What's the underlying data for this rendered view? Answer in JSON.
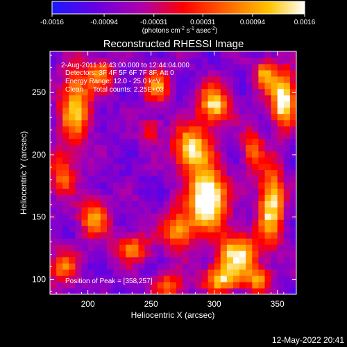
{
  "colorbar": {
    "tick_labels": [
      "-0.0016",
      "-0.00094",
      "-0.00031",
      "0.00031",
      "0.00094",
      "0.0016"
    ],
    "tick_values": [
      -0.0016,
      -0.00094,
      -0.00031,
      0.00031,
      0.00094,
      0.0016
    ],
    "range": [
      -0.0016,
      0.0016
    ],
    "units_label": "(photons cm",
    "units_exp1": "-2",
    "units_mid": " s",
    "units_exp2": "-1",
    "units_mid2": " asec",
    "units_exp3": "-2",
    "units_end": ")",
    "colors": [
      "#1a1aff",
      "#7a00d8",
      "#b8009a",
      "#ff0000",
      "#ff7a00",
      "#ffd000",
      "#ffffff"
    ]
  },
  "chart_data": {
    "type": "heatmap",
    "title": "Reconstructed RHESSI Image",
    "xlabel": "Heliocentric X (arcsec)",
    "ylabel": "Heliocentric Y (arcsec)",
    "xlim": [
      170,
      365
    ],
    "ylim": [
      88,
      283
    ],
    "x_ticks": [
      200,
      250,
      300,
      350
    ],
    "y_ticks": [
      100,
      150,
      200,
      250
    ],
    "peak_position": [
      358,
      257
    ],
    "annotations": [
      "2-Aug-2011 12:43:00.000 to 12:44:04.000",
      "Detectors: 3F 4F 5F 6F 7F 8F, Att 0",
      "Energy Range: 12.0 - 25.0 keV",
      "Clean     Total counts: 2.25E+03",
      "Position of Peak = [358,257]"
    ]
  },
  "footer": {
    "timestamp": "12-May-2022 20:41"
  }
}
